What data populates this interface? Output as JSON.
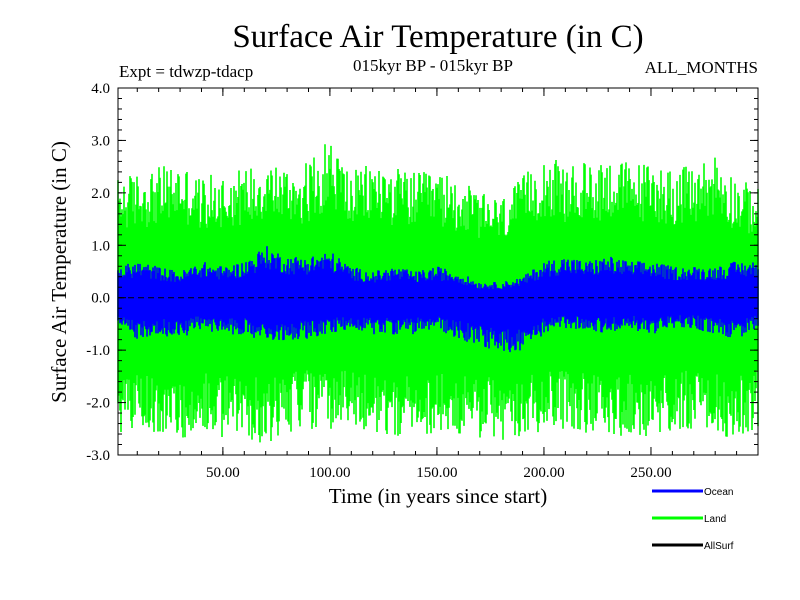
{
  "chart_data": {
    "type": "line",
    "title": "Surface Air Temperature (in C)",
    "experiment": "Expt = tdwzp-tdacp",
    "period": "015kyr BP - 015kyr BP",
    "season": "ALL_MONTHS",
    "xlabel": "Time (in years since start)",
    "ylabel": "Surface Air Temperature (in C)",
    "xlim": [
      1,
      300
    ],
    "ylim": [
      -3.0,
      4.0
    ],
    "x_ticks": [
      50,
      100,
      150,
      200,
      250
    ],
    "x_tick_labels": [
      "50.00",
      "100.00",
      "150.00",
      "200.00",
      "250.00"
    ],
    "y_ticks": [
      -3.0,
      -2.0,
      -1.0,
      0.0,
      1.0,
      2.0,
      3.0,
      4.0
    ],
    "y_tick_labels": [
      "-3.0",
      "-2.0",
      "-1.0",
      "0.0",
      "1.0",
      "2.0",
      "3.0",
      "4.0"
    ],
    "reference_line": 0.0,
    "series": [
      {
        "name": "Land",
        "color": "#00ff00",
        "envelope_x": [
          1,
          10,
          20,
          30,
          40,
          50,
          60,
          70,
          80,
          90,
          100,
          110,
          120,
          130,
          140,
          150,
          160,
          170,
          180,
          190,
          200,
          210,
          220,
          230,
          240,
          250,
          260,
          270,
          280,
          290,
          300
        ],
        "upper": [
          2.3,
          2.4,
          2.5,
          2.6,
          2.3,
          2.4,
          2.5,
          2.7,
          2.5,
          2.6,
          3.1,
          2.4,
          2.6,
          2.5,
          2.4,
          2.4,
          2.3,
          2.0,
          1.9,
          2.3,
          2.8,
          2.5,
          2.6,
          2.7,
          2.6,
          2.6,
          2.5,
          2.5,
          2.8,
          2.3,
          2.1
        ],
        "lower": [
          -2.6,
          -2.5,
          -2.6,
          -2.7,
          -2.6,
          -2.7,
          -2.7,
          -2.8,
          -2.6,
          -2.5,
          -2.6,
          -2.5,
          -2.6,
          -2.7,
          -2.6,
          -2.6,
          -2.6,
          -2.7,
          -2.8,
          -2.8,
          -2.5,
          -2.5,
          -2.6,
          -2.7,
          -2.6,
          -2.8,
          -2.6,
          -2.5,
          -2.6,
          -2.7,
          -2.5
        ]
      },
      {
        "name": "Ocean",
        "color": "#0000ff",
        "envelope_x": [
          1,
          10,
          20,
          30,
          40,
          50,
          60,
          70,
          80,
          90,
          100,
          110,
          120,
          130,
          140,
          150,
          160,
          170,
          180,
          190,
          200,
          210,
          220,
          230,
          240,
          250,
          260,
          270,
          280,
          290,
          300
        ],
        "upper": [
          0.6,
          0.7,
          0.6,
          0.5,
          0.7,
          0.6,
          0.7,
          1.0,
          0.8,
          0.8,
          0.9,
          0.6,
          0.5,
          0.6,
          0.5,
          0.6,
          0.5,
          0.3,
          0.3,
          0.4,
          0.7,
          0.8,
          0.7,
          0.8,
          0.7,
          0.7,
          0.6,
          0.6,
          0.6,
          0.7,
          0.7
        ],
        "lower": [
          -0.6,
          -0.8,
          -0.7,
          -0.8,
          -0.6,
          -0.7,
          -0.7,
          -0.9,
          -0.8,
          -0.8,
          -0.7,
          -0.6,
          -0.7,
          -0.7,
          -0.7,
          -0.6,
          -0.8,
          -0.9,
          -1.1,
          -1.0,
          -0.7,
          -0.6,
          -0.6,
          -0.7,
          -0.6,
          -0.7,
          -0.6,
          -0.6,
          -0.7,
          -0.8,
          -0.6
        ]
      },
      {
        "name": "AllSurf",
        "color": "#000000"
      }
    ],
    "legend": [
      {
        "name": "Ocean",
        "color": "#0000ff"
      },
      {
        "name": "Land",
        "color": "#00ff00"
      },
      {
        "name": "AllSurf",
        "color": "#000000"
      }
    ]
  }
}
